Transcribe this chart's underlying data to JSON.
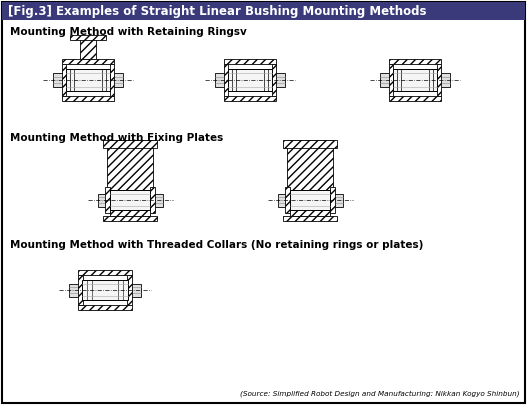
{
  "title": "[Fig.3] Examples of Straight Linear Bushing Mounting Methods",
  "title_bg": "#3a3a7a",
  "title_color": "white",
  "bg_color": "white",
  "border_color": "black",
  "section1_label": "Mounting Method with Retaining Ringsv",
  "section2_label": "Mounting Method with Fixing Plates",
  "section3_label": "Mounting Method with Threaded Collars (No retaining rings or plates)",
  "source_text": "(Source: Simplified Robot Design and Manufacturing: Nikkan Kogyo Shinbun)",
  "fig_width": 5.27,
  "fig_height": 4.05,
  "dpi": 100
}
